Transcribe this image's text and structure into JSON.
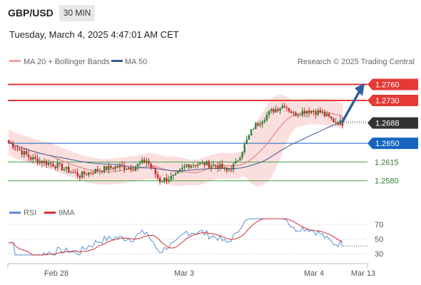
{
  "header": {
    "symbol": "GBP/USD",
    "interval": "30 MIN",
    "datetime": "Tuesday, March 4, 2025 4:47:01 AM CET"
  },
  "legend": {
    "ma_bb": "MA 20 + Bollinger Bands",
    "ma50": "MA 50",
    "copyright": "Research © 2025 Trading Central",
    "rsi": "RSI",
    "rsi_ma": "9MA"
  },
  "colors": {
    "bullish": "#2e7d32",
    "bearish": "#c62828",
    "resistance": "#e53935",
    "support_blue": "#1565c0",
    "support_green": "#43a047",
    "current_price": "#333333",
    "ma20_band": "#f4a0a0",
    "ma50": "#3b5b95",
    "arrow": "#2f5f9e"
  },
  "chart_data": [
    {
      "type": "candlestick",
      "series": [
        {
          "name": "MA 20 + Bollinger Bands"
        },
        {
          "name": "MA 50"
        }
      ],
      "x_ticks": [
        "Feb 28",
        "Mar 3",
        "Mar 4",
        "Mar 13"
      ],
      "ylim": [
        1.2545,
        1.279
      ],
      "current_price": "1.2688",
      "levels": [
        {
          "value": 1.276,
          "label": "1.2760",
          "kind": "resistance"
        },
        {
          "value": 1.273,
          "label": "1.2730",
          "kind": "resistance"
        },
        {
          "value": 1.265,
          "label": "1.2650",
          "kind": "support_blue"
        },
        {
          "value": 1.2615,
          "label": "1.2615",
          "kind": "support_green"
        },
        {
          "value": 1.258,
          "label": "1.2580",
          "kind": "support_green"
        }
      ]
    },
    {
      "type": "line",
      "series": [
        {
          "name": "RSI"
        },
        {
          "name": "9MA"
        }
      ],
      "ylim": [
        20,
        80
      ],
      "y_ticks": [
        "70",
        "50",
        "30"
      ]
    }
  ]
}
